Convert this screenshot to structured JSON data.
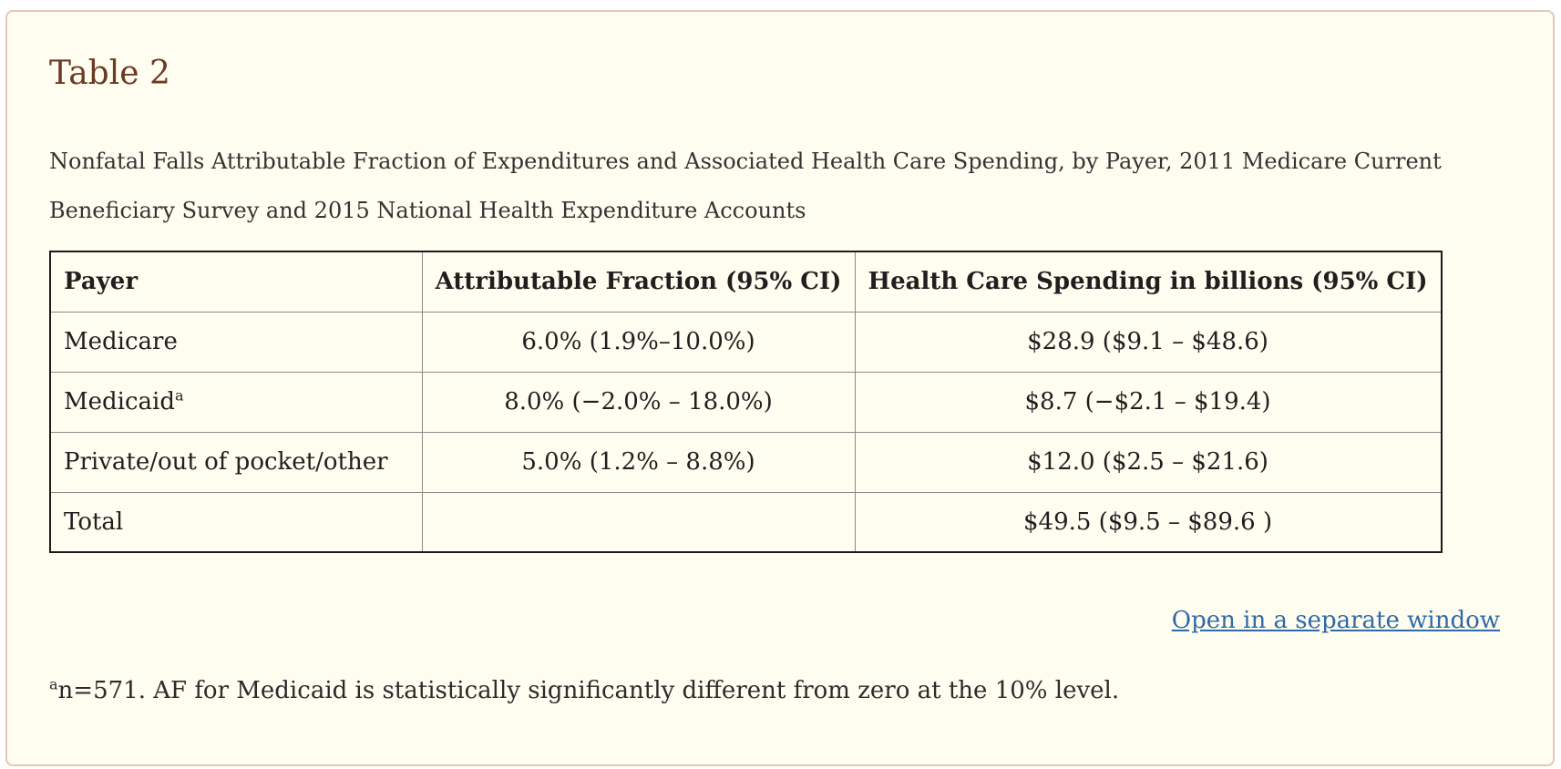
{
  "title": "Table 2",
  "caption": "Nonfatal Falls Attributable Fraction of Expenditures and Associated Health Care Spending, by Payer, 2011 Medicare Current Beneficiary Survey and 2015 National Health Expenditure Accounts",
  "table": {
    "headers": [
      "Payer",
      "Attributable Fraction (95% CI)",
      "Health Care Spending in billions (95% CI)"
    ],
    "rows": [
      {
        "payer": "Medicare",
        "sup": "",
        "af": "6.0% (1.9%–10.0%)",
        "spending": "$28.9 ($9.1 – $48.6)"
      },
      {
        "payer": "Medicaid",
        "sup": "a",
        "af": "8.0% (−2.0% – 18.0%)",
        "spending": "$8.7 (−$2.1 – $19.4)"
      },
      {
        "payer": "Private/out of pocket/other",
        "sup": "",
        "af": "5.0% (1.2% – 8.8%)",
        "spending": "$12.0 ($2.5 – $21.6)"
      },
      {
        "payer": "Total",
        "sup": "",
        "af": "",
        "spending": "$49.5 ($9.5 – $89.6 )"
      }
    ]
  },
  "link_label": "Open in a separate window",
  "footnote": {
    "marker": "a",
    "text": "n=571. AF for Medicaid is statistically significantly different from zero at the 10% level."
  }
}
